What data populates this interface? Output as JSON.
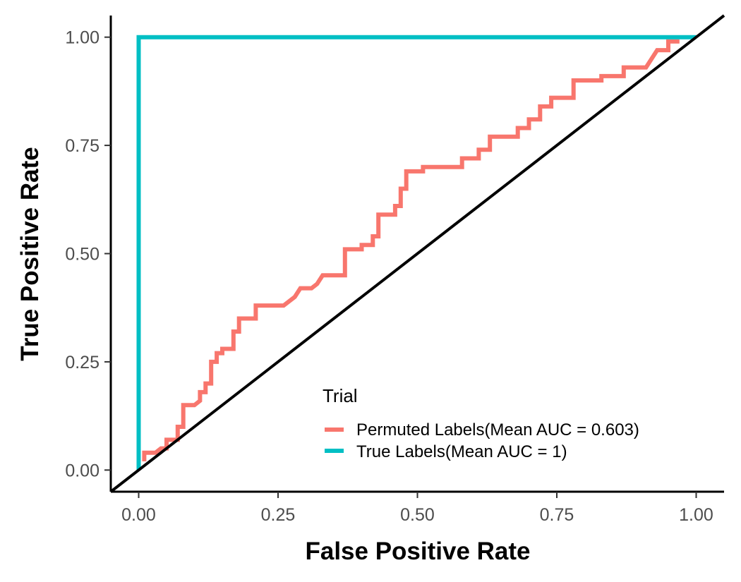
{
  "chart_data": {
    "type": "line",
    "title": "",
    "xlabel": "False Positive Rate",
    "ylabel": "True Positive Rate",
    "xlim": [
      -0.05,
      1.05
    ],
    "ylim": [
      -0.05,
      1.05
    ],
    "x_ticks": [
      0,
      0.25,
      0.5,
      0.75,
      1
    ],
    "x_tick_labels": [
      "0.00",
      "0.25",
      "0.50",
      "0.75",
      "1.00"
    ],
    "y_ticks": [
      0,
      0.25,
      0.5,
      0.75,
      1
    ],
    "y_tick_labels": [
      "0.00",
      "0.25",
      "0.50",
      "0.75",
      "1.00"
    ],
    "grid": false,
    "legend": {
      "title": "Trial",
      "position": "bottom-right, inside plot"
    },
    "series": [
      {
        "name": "Permuted Labels(Mean AUC = 0.603)",
        "color": "#F8766D",
        "line": "step",
        "points": [
          [
            0.01,
            0.02
          ],
          [
            0.01,
            0.04
          ],
          [
            0.03,
            0.04
          ],
          [
            0.04,
            0.05
          ],
          [
            0.05,
            0.05
          ],
          [
            0.05,
            0.07
          ],
          [
            0.07,
            0.07
          ],
          [
            0.07,
            0.1
          ],
          [
            0.08,
            0.1
          ],
          [
            0.08,
            0.15
          ],
          [
            0.1,
            0.15
          ],
          [
            0.11,
            0.16
          ],
          [
            0.11,
            0.18
          ],
          [
            0.12,
            0.18
          ],
          [
            0.12,
            0.2
          ],
          [
            0.13,
            0.2
          ],
          [
            0.13,
            0.25
          ],
          [
            0.14,
            0.25
          ],
          [
            0.14,
            0.27
          ],
          [
            0.15,
            0.27
          ],
          [
            0.15,
            0.28
          ],
          [
            0.17,
            0.28
          ],
          [
            0.17,
            0.32
          ],
          [
            0.18,
            0.32
          ],
          [
            0.18,
            0.35
          ],
          [
            0.21,
            0.35
          ],
          [
            0.21,
            0.38
          ],
          [
            0.26,
            0.38
          ],
          [
            0.27,
            0.39
          ],
          [
            0.28,
            0.4
          ],
          [
            0.29,
            0.42
          ],
          [
            0.31,
            0.42
          ],
          [
            0.32,
            0.43
          ],
          [
            0.33,
            0.45
          ],
          [
            0.37,
            0.45
          ],
          [
            0.37,
            0.51
          ],
          [
            0.4,
            0.51
          ],
          [
            0.4,
            0.52
          ],
          [
            0.42,
            0.52
          ],
          [
            0.42,
            0.54
          ],
          [
            0.43,
            0.54
          ],
          [
            0.43,
            0.59
          ],
          [
            0.46,
            0.59
          ],
          [
            0.46,
            0.61
          ],
          [
            0.47,
            0.61
          ],
          [
            0.47,
            0.65
          ],
          [
            0.48,
            0.65
          ],
          [
            0.48,
            0.69
          ],
          [
            0.51,
            0.69
          ],
          [
            0.51,
            0.7
          ],
          [
            0.58,
            0.7
          ],
          [
            0.58,
            0.72
          ],
          [
            0.61,
            0.72
          ],
          [
            0.61,
            0.74
          ],
          [
            0.63,
            0.74
          ],
          [
            0.63,
            0.77
          ],
          [
            0.68,
            0.77
          ],
          [
            0.68,
            0.79
          ],
          [
            0.7,
            0.79
          ],
          [
            0.7,
            0.81
          ],
          [
            0.72,
            0.81
          ],
          [
            0.72,
            0.84
          ],
          [
            0.74,
            0.84
          ],
          [
            0.74,
            0.86
          ],
          [
            0.78,
            0.86
          ],
          [
            0.78,
            0.9
          ],
          [
            0.83,
            0.9
          ],
          [
            0.83,
            0.91
          ],
          [
            0.87,
            0.91
          ],
          [
            0.87,
            0.93
          ],
          [
            0.91,
            0.93
          ],
          [
            0.92,
            0.95
          ],
          [
            0.93,
            0.97
          ],
          [
            0.95,
            0.97
          ],
          [
            0.95,
            0.99
          ],
          [
            0.97,
            0.99
          ]
        ]
      },
      {
        "name": "True Labels(Mean AUC = 1)",
        "color": "#00BFC4",
        "line": "step",
        "points": [
          [
            0,
            0
          ],
          [
            0,
            1
          ],
          [
            1,
            1
          ]
        ]
      }
    ],
    "reference_line": {
      "color": "#000000",
      "points": [
        [
          -0.05,
          -0.05
        ],
        [
          1.05,
          1.05
        ]
      ]
    }
  }
}
